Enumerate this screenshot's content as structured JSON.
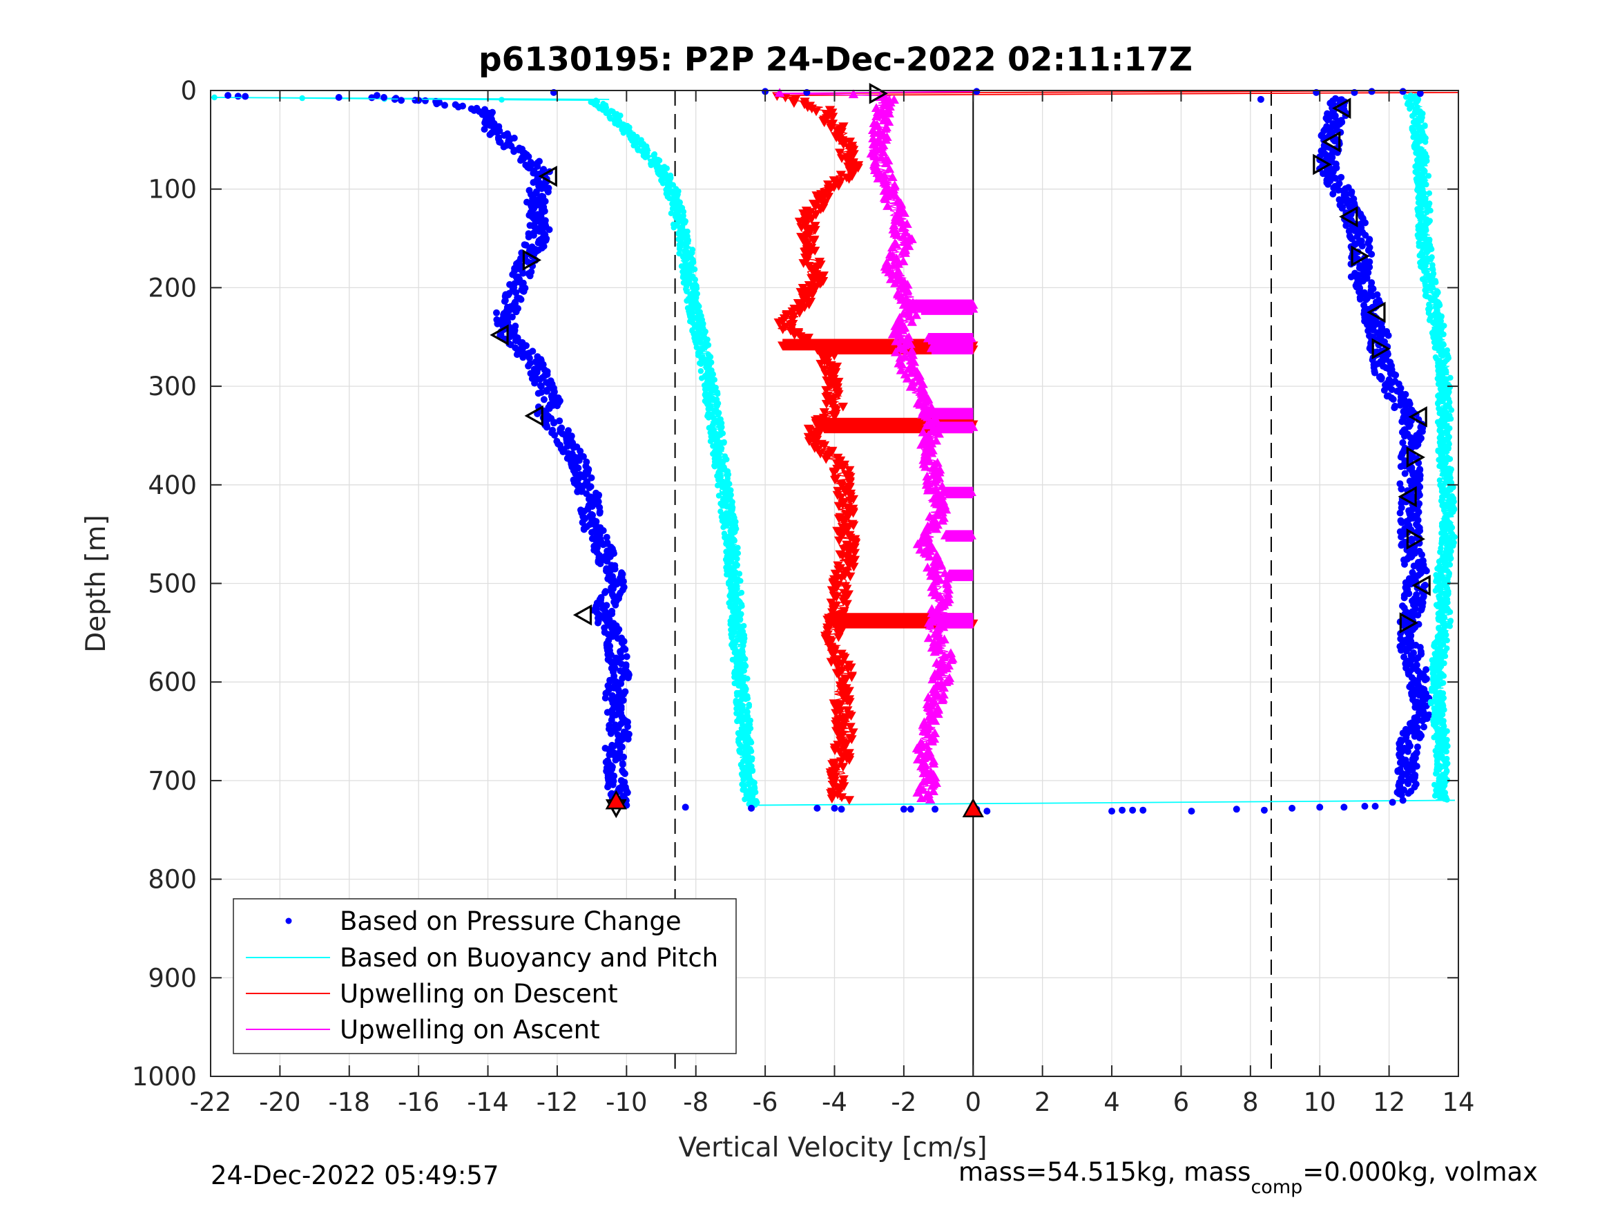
{
  "chart_data": {
    "type": "scatter",
    "title": "p6130195: P2P 24-Dec-2022 02:11:17Z",
    "xlabel": "Vertical Velocity [cm/s]",
    "ylabel": "Depth [m]",
    "xlim": [
      -22,
      14
    ],
    "ylim": [
      0,
      1000
    ],
    "y_reversed": true,
    "grid": true,
    "x_ticks": [
      -22,
      -20,
      -18,
      -16,
      -14,
      -12,
      -10,
      -8,
      -6,
      -4,
      -2,
      0,
      2,
      4,
      6,
      8,
      10,
      12,
      14
    ],
    "y_ticks": [
      0,
      100,
      200,
      300,
      400,
      500,
      600,
      700,
      800,
      900,
      1000
    ],
    "x_tick_labels": [
      "-22",
      "-20",
      "-18",
      "-16",
      "-14",
      "-12",
      "-10",
      "-8",
      "-6",
      "-4",
      "-2",
      "0",
      "2",
      "4",
      "6",
      "8",
      "10",
      "12",
      "14"
    ],
    "y_tick_labels": [
      "0",
      "100",
      "200",
      "300",
      "400",
      "500",
      "600",
      "700",
      "800",
      "900",
      "1000"
    ],
    "reference_lines": {
      "dashed_x": [
        -8.6,
        8.6
      ],
      "solid_x": [
        0
      ]
    },
    "legend": {
      "location": "bottom-left",
      "entries": [
        {
          "label": "Based on Pressure Change",
          "color": "#0000ff",
          "marker": "dot"
        },
        {
          "label": "Based on Buoyancy and Pitch",
          "color": "#00ffff",
          "marker": "line"
        },
        {
          "label": "Upwelling on Descent",
          "color": "#ff0000",
          "marker": "line"
        },
        {
          "label": "Upwelling on Ascent",
          "color": "#ff00ff",
          "marker": "line"
        }
      ]
    },
    "series": [
      {
        "name": "Based on Pressure Change",
        "color": "#0000ff",
        "style": "dots",
        "profile": [
          [
            -21.3,
            6
          ],
          [
            -17,
            7
          ],
          [
            -15.5,
            12
          ],
          [
            -14.2,
            20
          ],
          [
            -13.8,
            40
          ],
          [
            -13,
            65
          ],
          [
            -12.4,
            85
          ],
          [
            -12.6,
            110
          ],
          [
            -12.5,
            140
          ],
          [
            -12.8,
            170
          ],
          [
            -13.2,
            200
          ],
          [
            -13.5,
            230
          ],
          [
            -13.4,
            250
          ],
          [
            -12.8,
            270
          ],
          [
            -12.5,
            290
          ],
          [
            -12.2,
            315
          ],
          [
            -12.3,
            330
          ],
          [
            -11.8,
            350
          ],
          [
            -11.4,
            380
          ],
          [
            -11.1,
            410
          ],
          [
            -11.0,
            440
          ],
          [
            -10.6,
            470
          ],
          [
            -10.3,
            500
          ],
          [
            -10.7,
            530
          ],
          [
            -10.3,
            560
          ],
          [
            -10.2,
            590
          ],
          [
            -10.4,
            620
          ],
          [
            -10.2,
            650
          ],
          [
            -10.4,
            680
          ],
          [
            -10.3,
            700
          ],
          [
            -10.2,
            720
          ]
        ]
      },
      {
        "name": "Based on Pressure Change",
        "color": "#0000ff",
        "style": "dots",
        "profile": [
          [
            10.5,
            8
          ],
          [
            10.5,
            20
          ],
          [
            10.3,
            50
          ],
          [
            10.2,
            75
          ],
          [
            10.6,
            100
          ],
          [
            11.0,
            130
          ],
          [
            11.2,
            160
          ],
          [
            11.2,
            190
          ],
          [
            11.5,
            220
          ],
          [
            11.7,
            250
          ],
          [
            11.8,
            280
          ],
          [
            12.2,
            310
          ],
          [
            12.7,
            340
          ],
          [
            12.6,
            370
          ],
          [
            12.6,
            400
          ],
          [
            12.6,
            430
          ],
          [
            12.6,
            460
          ],
          [
            12.8,
            490
          ],
          [
            12.7,
            520
          ],
          [
            12.5,
            550
          ],
          [
            12.8,
            590
          ],
          [
            12.9,
            630
          ],
          [
            12.6,
            660
          ],
          [
            12.5,
            690
          ],
          [
            12.5,
            715
          ]
        ]
      },
      {
        "name": "Based on Buoyancy and Pitch",
        "color": "#00ffff",
        "style": "dense-dots",
        "profile": [
          [
            -22,
            7
          ],
          [
            -15.5,
            9
          ],
          [
            -11,
            10
          ],
          [
            -10.5,
            20
          ],
          [
            -10.0,
            40
          ],
          [
            -9.5,
            60
          ],
          [
            -9.0,
            80
          ],
          [
            -8.7,
            100
          ],
          [
            -8.5,
            130
          ],
          [
            -8.3,
            160
          ],
          [
            -8.2,
            190
          ],
          [
            -8.0,
            230
          ],
          [
            -7.8,
            260
          ],
          [
            -7.6,
            300
          ],
          [
            -7.4,
            350
          ],
          [
            -7.2,
            400
          ],
          [
            -7.0,
            450
          ],
          [
            -6.9,
            500
          ],
          [
            -6.8,
            550
          ],
          [
            -6.7,
            600
          ],
          [
            -6.6,
            650
          ],
          [
            -6.5,
            700
          ],
          [
            -6.4,
            725
          ]
        ]
      },
      {
        "name": "Based on Buoyancy and Pitch",
        "color": "#00ffff",
        "style": "dense-dots",
        "profile": [
          [
            12.6,
            5
          ],
          [
            12.8,
            20
          ],
          [
            12.9,
            60
          ],
          [
            13.0,
            100
          ],
          [
            13.0,
            140
          ],
          [
            13.1,
            180
          ],
          [
            13.3,
            220
          ],
          [
            13.5,
            260
          ],
          [
            13.6,
            300
          ],
          [
            13.6,
            340
          ],
          [
            13.6,
            380
          ],
          [
            13.7,
            420
          ],
          [
            13.7,
            460
          ],
          [
            13.5,
            500
          ],
          [
            13.6,
            540
          ],
          [
            13.4,
            580
          ],
          [
            13.4,
            620
          ],
          [
            13.5,
            660
          ],
          [
            13.5,
            700
          ],
          [
            13.5,
            720
          ]
        ]
      },
      {
        "name": "Upwelling on Descent",
        "color": "#ff0000",
        "style": "down-triangles",
        "profile": [
          [
            -5.5,
            5
          ],
          [
            -4.3,
            20
          ],
          [
            -3.7,
            50
          ],
          [
            -3.5,
            80
          ],
          [
            -4.2,
            100
          ],
          [
            -4.8,
            130
          ],
          [
            -4.8,
            160
          ],
          [
            -4.5,
            190
          ],
          [
            -5.0,
            220
          ],
          [
            -5.5,
            240
          ],
          [
            -4.3,
            260
          ],
          [
            -4.1,
            290
          ],
          [
            -4.0,
            320
          ],
          [
            -4.7,
            350
          ],
          [
            -3.8,
            380
          ],
          [
            -3.7,
            410
          ],
          [
            -3.7,
            440
          ],
          [
            -3.6,
            470
          ],
          [
            -3.8,
            500
          ],
          [
            -3.9,
            530
          ],
          [
            -4.1,
            560
          ],
          [
            -3.7,
            590
          ],
          [
            -3.8,
            620
          ],
          [
            -3.7,
            650
          ],
          [
            -3.8,
            680
          ],
          [
            -4.0,
            700
          ],
          [
            -3.8,
            720
          ]
        ],
        "spikes": [
          [
            -5.5,
            0,
            258
          ],
          [
            -4.5,
            0,
            262
          ],
          [
            -4.5,
            0,
            338
          ],
          [
            -4.3,
            0,
            342
          ],
          [
            -4.2,
            0,
            536
          ],
          [
            -4.0,
            0,
            540
          ]
        ]
      },
      {
        "name": "Upwelling on Ascent",
        "color": "#ff00ff",
        "style": "up-triangles",
        "profile": [
          [
            -5.7,
            3
          ],
          [
            -2.5,
            5
          ],
          [
            -2.6,
            30
          ],
          [
            -2.8,
            60
          ],
          [
            -2.5,
            90
          ],
          [
            -2.2,
            120
          ],
          [
            -2.0,
            150
          ],
          [
            -2.3,
            180
          ],
          [
            -1.8,
            220
          ],
          [
            -2.1,
            250
          ],
          [
            -1.9,
            280
          ],
          [
            -1.5,
            310
          ],
          [
            -1.2,
            340
          ],
          [
            -1.3,
            370
          ],
          [
            -1.1,
            400
          ],
          [
            -1.0,
            430
          ],
          [
            -1.4,
            460
          ],
          [
            -1.0,
            490
          ],
          [
            -0.9,
            520
          ],
          [
            -1.1,
            550
          ],
          [
            -0.8,
            580
          ],
          [
            -1.0,
            610
          ],
          [
            -1.3,
            640
          ],
          [
            -1.4,
            670
          ],
          [
            -1.3,
            700
          ],
          [
            -1.4,
            720
          ]
        ],
        "spikes": [
          [
            -2.0,
            0,
            218
          ],
          [
            -1.5,
            0,
            222
          ],
          [
            -1.3,
            0,
            252
          ],
          [
            -1.2,
            0,
            262
          ],
          [
            -1.2,
            0,
            328
          ],
          [
            -1.0,
            0,
            342
          ],
          [
            -0.8,
            0,
            408
          ],
          [
            -0.8,
            0,
            452
          ],
          [
            -0.7,
            0,
            492
          ],
          [
            -0.9,
            0,
            536
          ],
          [
            -0.9,
            0,
            540
          ]
        ]
      }
    ],
    "surface_segments": [
      {
        "color": "#00ffff",
        "x1": -22,
        "y1": 7,
        "x2": -10.5,
        "y2": 9
      },
      {
        "color": "#00ffff",
        "x1": -6.4,
        "y1": 725,
        "x2": 13.9,
        "y2": 720
      },
      {
        "color": "#ff0000",
        "x1": -5.5,
        "y1": 3,
        "x2": 14,
        "y2": 0
      },
      {
        "color": "#ff0000",
        "x1": -5.5,
        "y1": 5,
        "x2": 14,
        "y2": 2
      },
      {
        "color": "#ff00ff",
        "x1": -5.7,
        "y1": 3,
        "x2": 0,
        "y2": 1
      }
    ],
    "bottom_blue_dots": [
      [
        -10.0,
        725
      ],
      [
        -8.3,
        727
      ],
      [
        -6.4,
        728
      ],
      [
        -4.5,
        728
      ],
      [
        -4.0,
        728
      ],
      [
        -3.8,
        729
      ],
      [
        -2.0,
        729
      ],
      [
        -1.8,
        729
      ],
      [
        -1.1,
        729
      ],
      [
        0.1,
        729
      ],
      [
        0.4,
        731
      ],
      [
        4.0,
        731
      ],
      [
        4.3,
        730
      ],
      [
        4.6,
        730
      ],
      [
        4.9,
        730
      ],
      [
        6.3,
        731
      ],
      [
        7.6,
        729
      ],
      [
        8.4,
        730
      ],
      [
        9.2,
        728
      ],
      [
        10.0,
        727
      ],
      [
        10.7,
        727
      ],
      [
        11.3,
        726
      ],
      [
        11.6,
        726
      ],
      [
        12.1,
        722
      ],
      [
        12.4,
        720
      ]
    ],
    "top_blue_dots": [
      [
        -21.5,
        5
      ],
      [
        -21.0,
        6
      ],
      [
        -18.3,
        7
      ],
      [
        -17.2,
        5
      ],
      [
        -17.0,
        7
      ],
      [
        -16.5,
        10
      ],
      [
        -16.0,
        10
      ],
      [
        -12.1,
        2
      ],
      [
        -6.0,
        1
      ],
      [
        -4.8,
        2
      ],
      [
        0.1,
        1
      ],
      [
        8.3,
        9
      ],
      [
        9.9,
        2
      ],
      [
        11.0,
        2
      ],
      [
        11.5,
        1
      ],
      [
        12.4,
        1
      ],
      [
        12.9,
        3
      ]
    ],
    "glider_markers": [
      {
        "x": -2.8,
        "y": 3,
        "dir": "right",
        "fill": "none"
      },
      {
        "x": -12.2,
        "y": 87,
        "dir": "left",
        "fill": "none"
      },
      {
        "x": -12.8,
        "y": 172,
        "dir": "right",
        "fill": "none"
      },
      {
        "x": -13.6,
        "y": 248,
        "dir": "left",
        "fill": "none"
      },
      {
        "x": -12.6,
        "y": 330,
        "dir": "left",
        "fill": "none"
      },
      {
        "x": -11.2,
        "y": 532,
        "dir": "left",
        "fill": "none"
      },
      {
        "x": -10.3,
        "y": 726,
        "dir": "down",
        "fill": "none"
      },
      {
        "x": 10.7,
        "y": 18,
        "dir": "left",
        "fill": "none"
      },
      {
        "x": 10.4,
        "y": 52,
        "dir": "left",
        "fill": "none"
      },
      {
        "x": 10.0,
        "y": 75,
        "dir": "right",
        "fill": "none"
      },
      {
        "x": 10.9,
        "y": 128,
        "dir": "left",
        "fill": "none"
      },
      {
        "x": 11.1,
        "y": 168,
        "dir": "right",
        "fill": "none"
      },
      {
        "x": 11.7,
        "y": 225,
        "dir": "left",
        "fill": "none"
      },
      {
        "x": 11.7,
        "y": 262,
        "dir": "right",
        "fill": "none"
      },
      {
        "x": 12.9,
        "y": 331,
        "dir": "left",
        "fill": "none"
      },
      {
        "x": 12.7,
        "y": 372,
        "dir": "right",
        "fill": "none"
      },
      {
        "x": 12.6,
        "y": 412,
        "dir": "left",
        "fill": "none"
      },
      {
        "x": 12.7,
        "y": 455,
        "dir": "right",
        "fill": "none"
      },
      {
        "x": 13.0,
        "y": 502,
        "dir": "left",
        "fill": "none"
      },
      {
        "x": 12.5,
        "y": 540,
        "dir": "right",
        "fill": "none"
      }
    ],
    "red_markers": [
      {
        "x": -10.3,
        "y": 722,
        "dir": "up"
      },
      {
        "x": 0,
        "y": 730,
        "dir": "up"
      }
    ]
  },
  "footer": {
    "timestamp": "24-Dec-2022 05:49:57",
    "mass_text_a": "mass=54.515kg, mass",
    "mass_sub": "comp",
    "mass_text_b": "=0.000kg, volmax"
  }
}
